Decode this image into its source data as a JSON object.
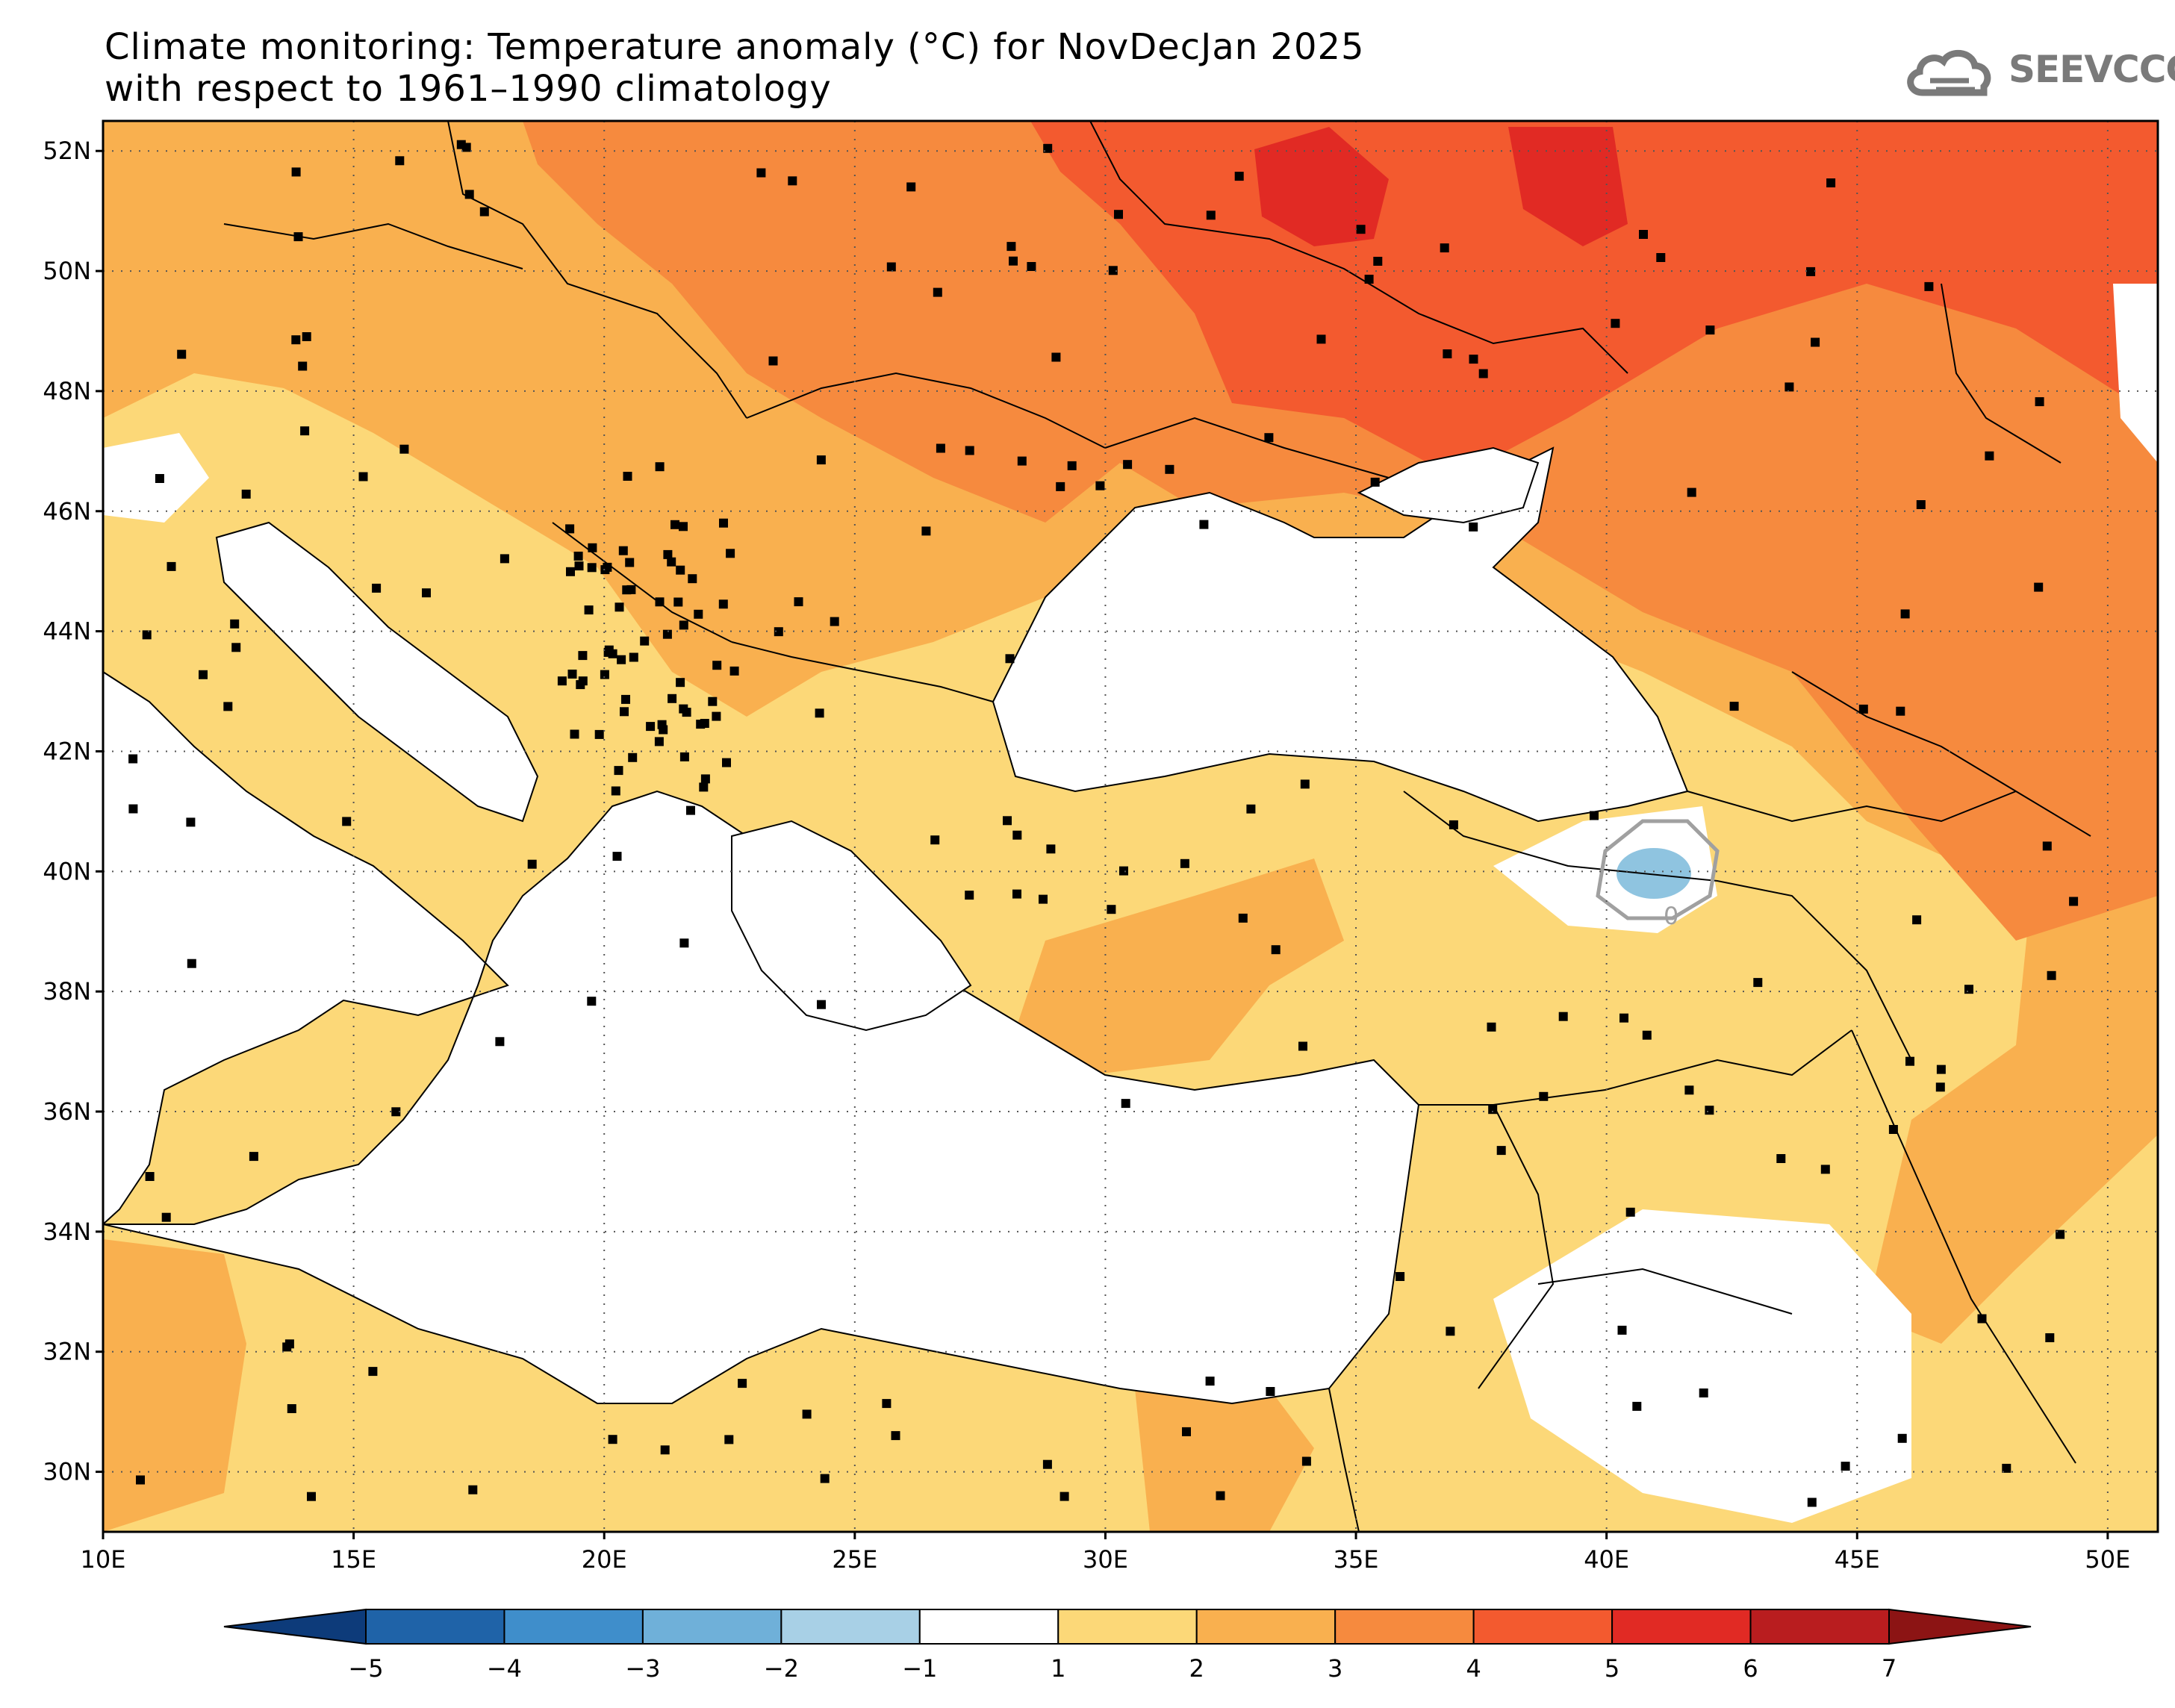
{
  "title": {
    "line1": "Climate monitoring: Temperature anomaly (°C) for NovDecJan 2025",
    "line2": "with respect to 1961–1990 climatology"
  },
  "logo": {
    "text": "SEEVCCC",
    "icon": "cloud-icon"
  },
  "map": {
    "lon_range": [
      10,
      51
    ],
    "lat_range": [
      29,
      52.5
    ],
    "lat_ticks": [
      "52N",
      "50N",
      "48N",
      "46N",
      "44N",
      "42N",
      "40N",
      "38N",
      "36N",
      "34N",
      "32N",
      "30N"
    ],
    "lon_ticks": [
      "10E",
      "15E",
      "20E",
      "25E",
      "30E",
      "35E",
      "40E",
      "45E",
      "50E"
    ],
    "contour_label": "0",
    "gridlines": true
  },
  "legend": {
    "labels": [
      "-5",
      "-4",
      "-3",
      "-2",
      "-1",
      "1",
      "2",
      "3",
      "4",
      "5",
      "6",
      "7"
    ],
    "colors": [
      "#0d3b7a",
      "#1f63a8",
      "#3f8ecb",
      "#6fb0d9",
      "#a8d0e6",
      "#ffffff",
      "#fcd878",
      "#f9b04f",
      "#f68a3e",
      "#f35a2f",
      "#e12a24",
      "#b91d1f",
      "#8c1414"
    ]
  },
  "colors": {
    "land_cool": "#ffffff",
    "anom_1_2": "#fcd878",
    "anom_2_3": "#f9b04f",
    "anom_3_4": "#f68a3e",
    "anom_4_5": "#f35a2f",
    "anom_5_6": "#e12a24",
    "anom_neg": "#8fc4e0",
    "water": "#ffffff"
  }
}
